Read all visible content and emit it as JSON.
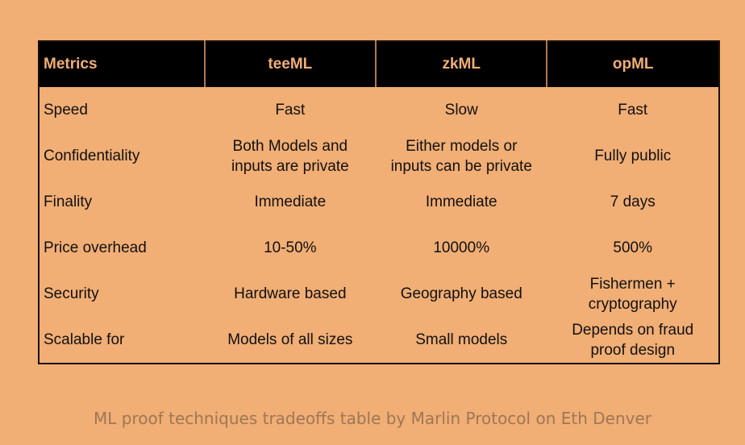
{
  "table": {
    "headers": [
      "Metrics",
      "teeML",
      "zkML",
      "opML"
    ],
    "rows": [
      [
        "Speed",
        "Fast",
        "Slow",
        "Fast"
      ],
      [
        "Confidentiality",
        "Both Models and\ninputs are private",
        "Either models or\ninputs can be private",
        "Fully public"
      ],
      [
        "Finality",
        "Immediate",
        "Immediate",
        "7 days"
      ],
      [
        "Price overhead",
        "10-50%",
        "10000%",
        "500%"
      ],
      [
        "Security",
        "Hardware based",
        "Geography based",
        "Fishermen +\ncryptography"
      ],
      [
        "Scalable for",
        "Models of all sizes",
        "Small models",
        "Depends on fraud\nproof design"
      ]
    ]
  },
  "caption": "ML proof techniques tradeoffs table by Marlin Protocol on Eth Denver",
  "colors": {
    "background": "#f1ae75",
    "header_bg": "#000000",
    "header_text": "#f1ae75"
  }
}
